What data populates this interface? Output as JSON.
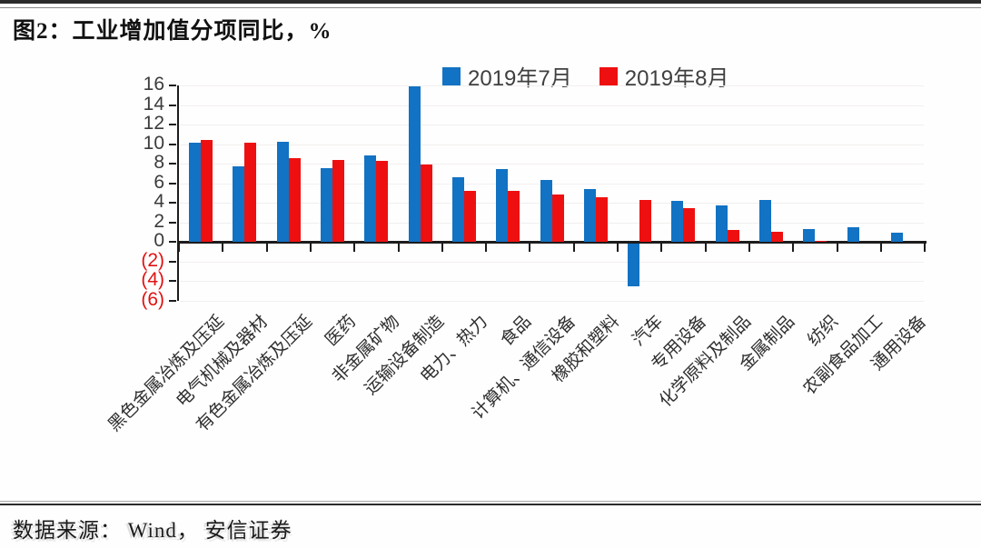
{
  "header": {
    "title": "图2：工业增加值分项同比，%"
  },
  "chart_data": {
    "type": "bar",
    "title": "工业增加值分项同比",
    "unit": "%",
    "categories": [
      "黑色金属冶炼及压延",
      "电气机械及器材",
      "有色金属冶炼及压延",
      "医药",
      "非金属矿物",
      "运输设备制造",
      "电力、热力",
      "食品",
      "计算机、通信设备",
      "橡胶和塑料",
      "汽车",
      "专用设备",
      "化学原料及制品",
      "金属制品",
      "纺织",
      "农副食品加工",
      "通用设备"
    ],
    "series": [
      {
        "name": "2019年7月",
        "color": "#1272c3",
        "values": [
          10.1,
          7.7,
          10.2,
          7.5,
          8.8,
          15.9,
          6.6,
          7.4,
          6.3,
          5.4,
          -4.4,
          4.2,
          3.7,
          4.3,
          1.3,
          1.5,
          0.9
        ]
      },
      {
        "name": "2019年8月",
        "color": "#ee1010",
        "values": [
          10.4,
          10.1,
          8.6,
          8.4,
          8.3,
          7.9,
          5.2,
          5.2,
          4.8,
          4.6,
          4.3,
          3.4,
          1.2,
          1.0,
          0.1,
          0.0,
          0.0
        ]
      }
    ],
    "ylim": [
      -6,
      16
    ],
    "y_tick_step": 2,
    "y_tick_labels": [
      "16",
      "14",
      "12",
      "10",
      "8",
      "6",
      "4",
      "2",
      "0",
      "(2)",
      "(4)",
      "(6)"
    ],
    "negative_tick_color": "#e01212",
    "legend_position": "top-center",
    "grid": false,
    "xlabel": "",
    "ylabel": ""
  },
  "footer": {
    "source": "数据来源： Wind， 安信证券"
  }
}
